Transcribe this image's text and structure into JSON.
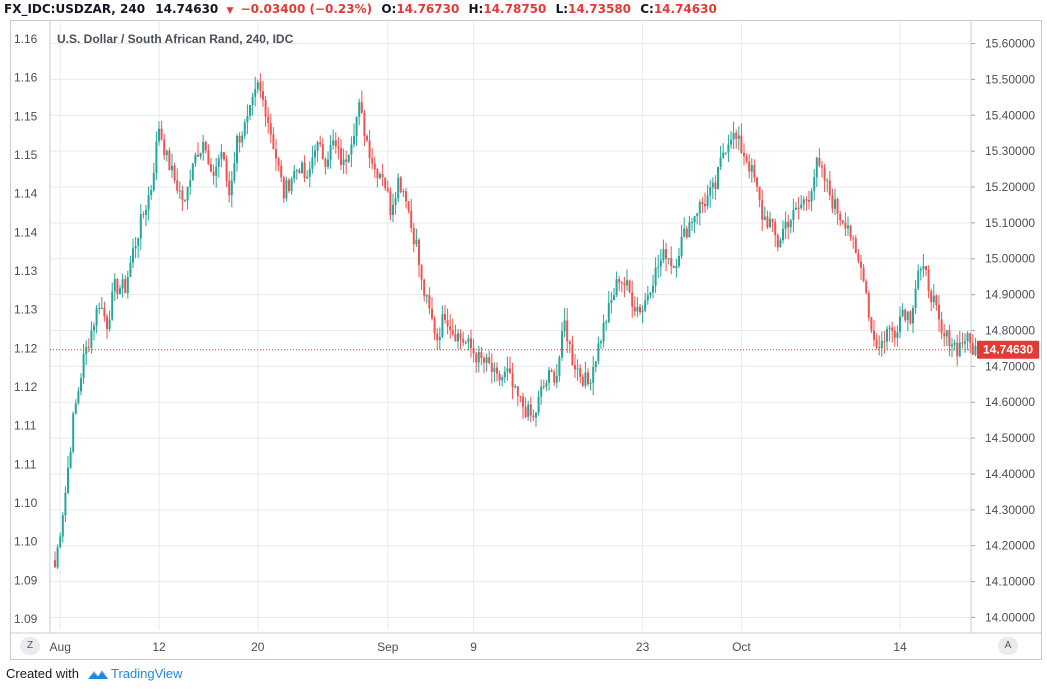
{
  "header": {
    "symbol": "FX_IDC:USDZAR, 240",
    "last": "14.74630",
    "arrow": "▼",
    "change": "−0.03400 (−0.23%)",
    "o_label": "O:",
    "o_value": "14.76730",
    "h_label": "H:",
    "h_value": "14.78750",
    "l_label": "L:",
    "l_value": "14.73580",
    "c_label": "C:",
    "c_value": "14.74630"
  },
  "footer": {
    "created_with": "Created with",
    "brand": "TradingView"
  },
  "corner_left": "Z",
  "corner_right": "A",
  "colors": {
    "up": "#26a69a",
    "down": "#ef5350",
    "grid": "#e6e9ee",
    "axis_text": "#4a4e59",
    "price_line": "#e53935"
  },
  "chart_data": {
    "type": "candlestick",
    "title": "U.S. Dollar / South African Rand, 240, IDC",
    "right_axis": {
      "ticks": [
        "14.00000",
        "14.10000",
        "14.20000",
        "14.30000",
        "14.40000",
        "14.50000",
        "14.60000",
        "14.70000",
        "14.80000",
        "14.90000",
        "15.00000",
        "15.10000",
        "15.20000",
        "15.30000",
        "15.40000",
        "15.50000",
        "15.60000"
      ],
      "ylim": [
        13.965,
        15.66
      ]
    },
    "left_axis": {
      "ticks": [
        "1.09",
        "1.09",
        "1.10",
        "1.10",
        "1.11",
        "1.11",
        "1.12",
        "1.12",
        "1.13",
        "1.13",
        "1.14",
        "1.14",
        "1.15",
        "1.15",
        "1.16",
        "1.16"
      ]
    },
    "x_ticks": [
      {
        "label": "Aug",
        "idx": 2
      },
      {
        "label": "12",
        "idx": 40
      },
      {
        "label": "20",
        "idx": 78
      },
      {
        "label": "Sep",
        "idx": 128
      },
      {
        "label": "9",
        "idx": 161
      },
      {
        "label": "23",
        "idx": 226
      },
      {
        "label": "Oct",
        "idx": 264
      },
      {
        "label": "14",
        "idx": 325
      }
    ],
    "last_price": 14.7463,
    "last_price_label": "14.74630",
    "keypoints": [
      [
        0,
        14.14
      ],
      [
        4,
        14.35
      ],
      [
        7,
        14.55
      ],
      [
        11,
        14.72
      ],
      [
        14,
        14.8
      ],
      [
        17,
        14.88
      ],
      [
        20,
        14.82
      ],
      [
        23,
        14.92
      ],
      [
        27,
        14.92
      ],
      [
        30,
        15.02
      ],
      [
        33,
        15.1
      ],
      [
        37,
        15.2
      ],
      [
        40,
        15.37
      ],
      [
        43,
        15.28
      ],
      [
        46,
        15.22
      ],
      [
        50,
        15.15
      ],
      [
        53,
        15.28
      ],
      [
        57,
        15.33
      ],
      [
        60,
        15.22
      ],
      [
        64,
        15.3
      ],
      [
        67,
        15.18
      ],
      [
        70,
        15.33
      ],
      [
        74,
        15.38
      ],
      [
        78,
        15.48
      ],
      [
        81,
        15.42
      ],
      [
        84,
        15.32
      ],
      [
        88,
        15.18
      ],
      [
        91,
        15.23
      ],
      [
        94,
        15.26
      ],
      [
        97,
        15.21
      ],
      [
        100,
        15.32
      ],
      [
        104,
        15.28
      ],
      [
        107,
        15.32
      ],
      [
        111,
        15.26
      ],
      [
        114,
        15.34
      ],
      [
        117,
        15.42
      ],
      [
        120,
        15.33
      ],
      [
        123,
        15.25
      ],
      [
        126,
        15.24
      ],
      [
        129,
        15.14
      ],
      [
        132,
        15.22
      ],
      [
        135,
        15.18
      ],
      [
        137,
        15.09
      ],
      [
        139,
        15.04
      ],
      [
        141,
        14.93
      ],
      [
        144,
        14.85
      ],
      [
        147,
        14.78
      ],
      [
        150,
        14.85
      ],
      [
        153,
        14.8
      ],
      [
        156,
        14.78
      ],
      [
        160,
        14.75
      ],
      [
        163,
        14.72
      ],
      [
        167,
        14.7
      ],
      [
        170,
        14.66
      ],
      [
        174,
        14.68
      ],
      [
        177,
        14.62
      ],
      [
        181,
        14.58
      ],
      [
        184,
        14.55
      ],
      [
        187,
        14.63
      ],
      [
        190,
        14.67
      ],
      [
        193,
        14.68
      ],
      [
        196,
        14.82
      ],
      [
        199,
        14.72
      ],
      [
        202,
        14.68
      ],
      [
        205,
        14.65
      ],
      [
        208,
        14.73
      ],
      [
        211,
        14.81
      ],
      [
        214,
        14.88
      ],
      [
        217,
        14.95
      ],
      [
        220,
        14.92
      ],
      [
        223,
        14.87
      ],
      [
        226,
        14.86
      ],
      [
        229,
        14.93
      ],
      [
        232,
        14.98
      ],
      [
        235,
        15.02
      ],
      [
        238,
        14.98
      ],
      [
        241,
        15.05
      ],
      [
        244,
        15.1
      ],
      [
        247,
        15.14
      ],
      [
        250,
        15.16
      ],
      [
        254,
        15.2
      ],
      [
        257,
        15.3
      ],
      [
        260,
        15.35
      ],
      [
        263,
        15.32
      ],
      [
        266,
        15.28
      ],
      [
        269,
        15.22
      ],
      [
        272,
        15.12
      ],
      [
        275,
        15.1
      ],
      [
        278,
        15.04
      ],
      [
        281,
        15.1
      ],
      [
        284,
        15.12
      ],
      [
        287,
        15.15
      ],
      [
        290,
        15.18
      ],
      [
        293,
        15.26
      ],
      [
        296,
        15.22
      ],
      [
        299,
        15.16
      ],
      [
        302,
        15.12
      ],
      [
        305,
        15.1
      ],
      [
        308,
        15.0
      ],
      [
        311,
        14.96
      ],
      [
        314,
        14.8
      ],
      [
        317,
        14.75
      ],
      [
        320,
        14.8
      ],
      [
        323,
        14.8
      ],
      [
        326,
        14.86
      ],
      [
        329,
        14.84
      ],
      [
        332,
        14.97
      ],
      [
        335,
        14.95
      ],
      [
        338,
        14.88
      ],
      [
        341,
        14.78
      ],
      [
        344,
        14.78
      ],
      [
        347,
        14.75
      ],
      [
        350,
        14.78
      ],
      [
        353,
        14.75
      ],
      [
        355,
        14.7463
      ]
    ]
  }
}
